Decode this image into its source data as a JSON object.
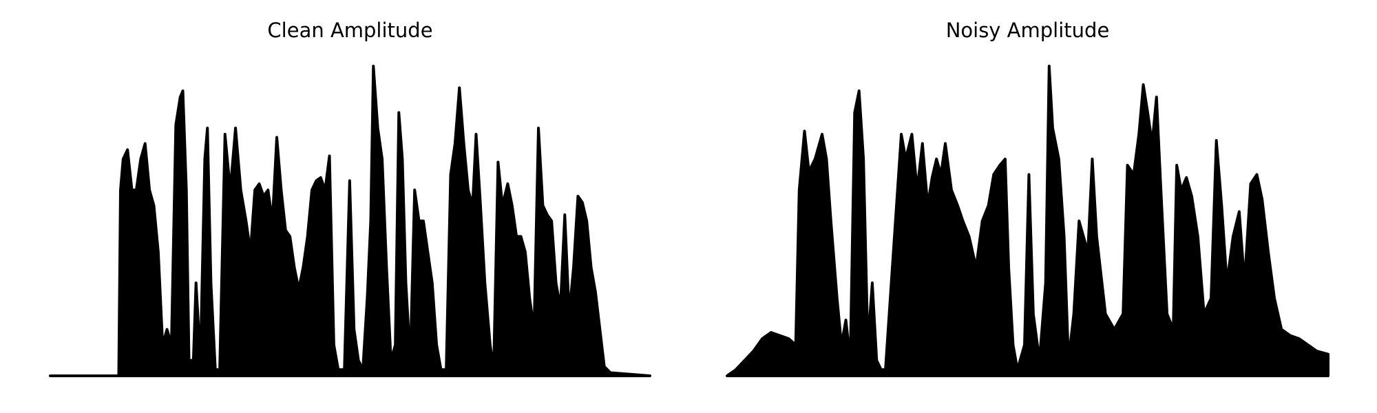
{
  "chart_data": [
    {
      "type": "area",
      "title": "Clean Amplitude",
      "color": "#000000",
      "xlim": [
        0,
        683
      ],
      "ylim": [
        0,
        1
      ],
      "x": [
        0,
        78,
        80,
        83,
        88,
        93,
        98,
        103,
        108,
        113,
        118,
        123,
        128,
        133,
        138,
        143,
        148,
        151,
        155,
        158,
        163,
        166,
        171,
        176,
        179,
        183,
        188,
        193,
        199,
        205,
        211,
        217,
        223,
        228,
        233,
        238,
        243,
        248,
        253,
        258,
        263,
        268,
        273,
        278,
        283,
        288,
        293,
        298,
        303,
        308,
        313,
        318,
        323,
        328,
        335,
        341,
        346,
        351,
        356,
        361,
        365,
        368,
        373,
        378,
        383,
        388,
        393,
        397,
        401,
        405,
        410,
        415,
        420,
        425,
        430,
        435,
        440,
        445,
        451,
        456,
        461,
        466,
        471,
        476,
        481,
        485,
        490,
        495,
        501,
        505,
        510,
        515,
        521,
        526,
        531,
        536,
        541,
        546,
        551,
        556,
        561,
        566,
        571,
        576,
        581,
        586,
        591,
        596,
        601,
        606,
        611,
        616,
        621,
        626,
        631,
        638,
        683
      ],
      "values": [
        0,
        0,
        0.6,
        0.7,
        0.73,
        0.6,
        0.6,
        0.7,
        0.75,
        0.6,
        0.55,
        0.4,
        0.1,
        0.15,
        0.1,
        0.81,
        0.9,
        0.92,
        0.6,
        0.05,
        0.05,
        0.3,
        0.05,
        0.7,
        0.8,
        0.3,
        0.02,
        0.02,
        0.78,
        0.6,
        0.8,
        0.6,
        0.5,
        0.4,
        0.6,
        0.62,
        0.58,
        0.6,
        0.5,
        0.77,
        0.6,
        0.47,
        0.45,
        0.35,
        0.28,
        0.35,
        0.45,
        0.6,
        0.63,
        0.64,
        0.6,
        0.71,
        0.1,
        0.02,
        0.02,
        0.63,
        0.15,
        0.05,
        0.02,
        0.25,
        0.5,
        1.0,
        0.8,
        0.7,
        0.35,
        0.05,
        0.1,
        0.85,
        0.7,
        0.3,
        0.05,
        0.6,
        0.5,
        0.5,
        0.4,
        0.3,
        0.1,
        0.02,
        0.02,
        0.65,
        0.75,
        0.93,
        0.75,
        0.6,
        0.55,
        0.78,
        0.55,
        0.3,
        0.1,
        0.02,
        0.69,
        0.55,
        0.62,
        0.55,
        0.45,
        0.45,
        0.4,
        0.25,
        0.15,
        0.8,
        0.55,
        0.52,
        0.5,
        0.3,
        0.22,
        0.52,
        0.2,
        0.35,
        0.58,
        0.56,
        0.5,
        0.35,
        0.27,
        0.15,
        0.03,
        0.01,
        0
      ]
    },
    {
      "type": "area",
      "title": "Noisy Amplitude",
      "color": "#000000",
      "xlim": [
        0,
        683
      ],
      "ylim": [
        0,
        1
      ],
      "x": [
        0,
        10,
        20,
        30,
        40,
        50,
        60,
        70,
        78,
        82,
        88,
        93,
        100,
        108,
        113,
        118,
        125,
        130,
        135,
        140,
        145,
        150,
        155,
        160,
        165,
        170,
        175,
        180,
        198,
        203,
        210,
        216,
        222,
        228,
        233,
        238,
        243,
        248,
        255,
        262,
        268,
        275,
        283,
        290,
        297,
        303,
        310,
        316,
        320,
        325,
        330,
        338,
        343,
        348,
        355,
        362,
        366,
        370,
        377,
        383,
        388,
        394,
        400,
        410,
        415,
        420,
        430,
        440,
        450,
        455,
        462,
        468,
        473,
        478,
        483,
        488,
        493,
        500,
        507,
        511,
        516,
        522,
        528,
        535,
        542,
        550,
        556,
        562,
        568,
        575,
        582,
        588,
        595,
        602,
        608,
        615,
        622,
        630,
        640,
        650,
        660,
        670,
        683
      ],
      "values": [
        0,
        0.02,
        0.05,
        0.08,
        0.12,
        0.14,
        0.13,
        0.12,
        0.1,
        0.6,
        0.79,
        0.66,
        0.7,
        0.78,
        0.7,
        0.5,
        0.25,
        0.1,
        0.18,
        0.05,
        0.85,
        0.92,
        0.7,
        0.1,
        0.3,
        0.05,
        0.02,
        0.02,
        0.78,
        0.7,
        0.78,
        0.6,
        0.75,
        0.55,
        0.64,
        0.7,
        0.65,
        0.75,
        0.6,
        0.55,
        0.5,
        0.45,
        0.35,
        0.5,
        0.55,
        0.65,
        0.68,
        0.7,
        0.35,
        0.1,
        0.02,
        0.1,
        0.65,
        0.2,
        0.05,
        0.3,
        1.0,
        0.8,
        0.7,
        0.45,
        0.05,
        0.2,
        0.5,
        0.4,
        0.7,
        0.45,
        0.2,
        0.15,
        0.2,
        0.68,
        0.65,
        0.78,
        0.94,
        0.85,
        0.75,
        0.9,
        0.6,
        0.2,
        0.15,
        0.68,
        0.6,
        0.64,
        0.58,
        0.45,
        0.2,
        0.25,
        0.76,
        0.55,
        0.3,
        0.45,
        0.53,
        0.3,
        0.62,
        0.65,
        0.57,
        0.4,
        0.25,
        0.15,
        0.13,
        0.12,
        0.1,
        0.08,
        0.07
      ]
    }
  ]
}
